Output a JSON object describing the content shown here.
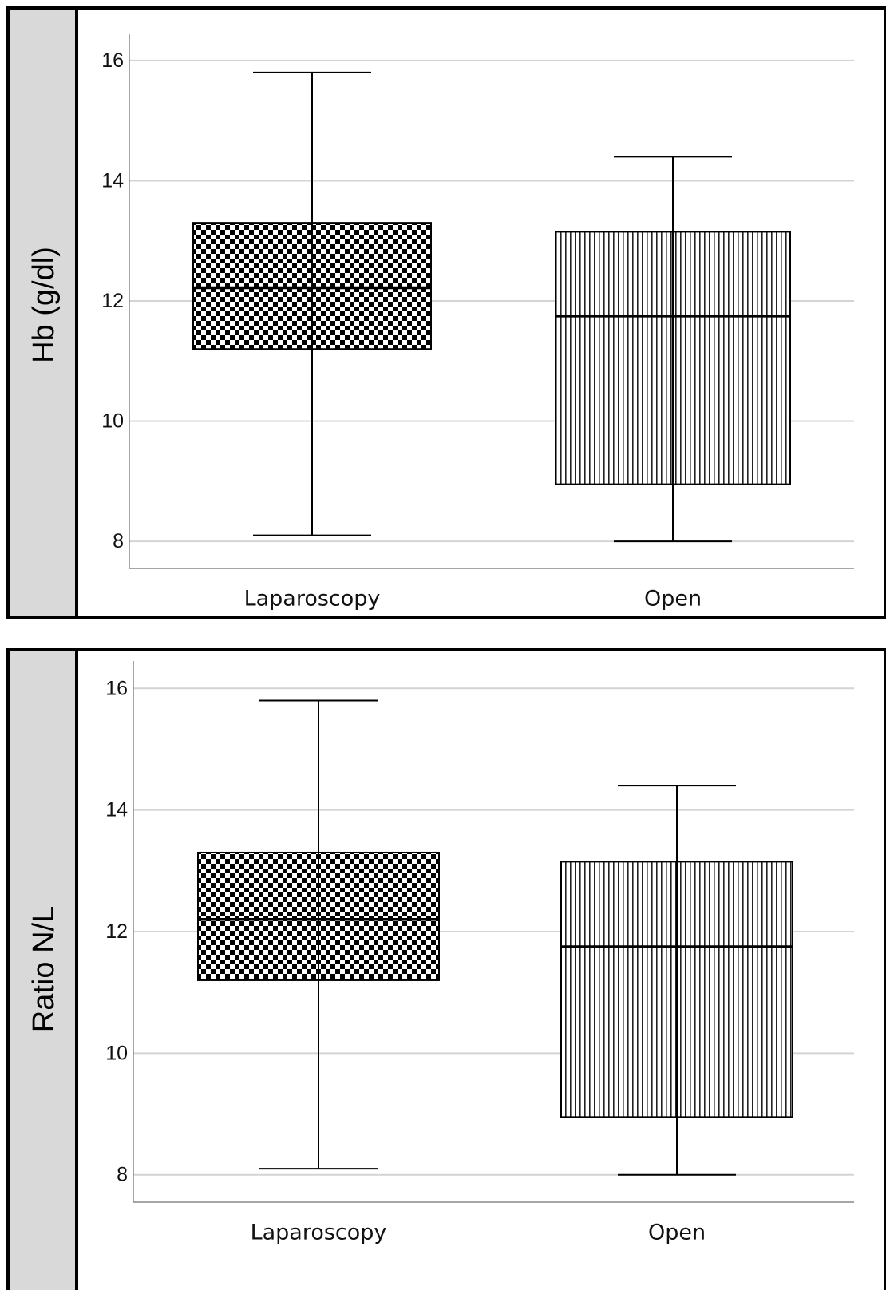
{
  "chart_data": [
    {
      "type": "box",
      "ylabel": "Hb (g/dl)",
      "xlabel": "",
      "ylim": [
        7.55,
        16.45
      ],
      "yticks": [
        8,
        10,
        12,
        14,
        16
      ],
      "grid": true,
      "categories": [
        "Laparoscopy",
        "Open"
      ],
      "boxes": [
        {
          "category": "Laparoscopy",
          "min": 8.1,
          "q1": 11.2,
          "median": 12.22,
          "q3": 13.3,
          "max": 15.8,
          "pattern": "checkerboard"
        },
        {
          "category": "Open",
          "min": 8.0,
          "q1": 8.95,
          "median": 11.75,
          "q3": 13.15,
          "max": 14.4,
          "pattern": "vertical-lines"
        }
      ]
    },
    {
      "type": "box",
      "ylabel": "Ratio N/L",
      "xlabel": "",
      "ylim": [
        7.55,
        16.45
      ],
      "yticks": [
        8,
        10,
        12,
        14,
        16
      ],
      "grid": true,
      "categories": [
        "Laparoscopy",
        "Open"
      ],
      "boxes": [
        {
          "category": "Laparoscopy",
          "min": 8.1,
          "q1": 11.2,
          "median": 12.2,
          "q3": 13.3,
          "max": 15.8,
          "pattern": "checkerboard"
        },
        {
          "category": "Open",
          "min": 8.0,
          "q1": 8.95,
          "median": 11.75,
          "q3": 13.15,
          "max": 14.4,
          "pattern": "vertical-lines"
        }
      ]
    }
  ],
  "colors": {
    "label_band": "#d9d9d9",
    "grid": "#d4d4d4",
    "ink": "#000000"
  }
}
